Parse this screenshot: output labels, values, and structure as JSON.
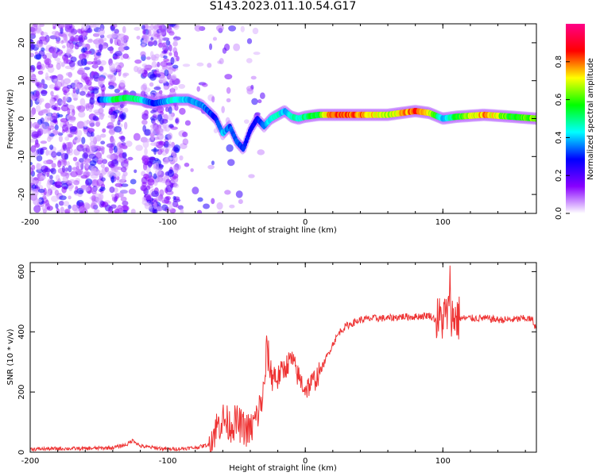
{
  "title": "S143.2023.011.10.54.G17",
  "chart_data": [
    {
      "type": "heatmap",
      "name": "spectrogram",
      "xlabel": "Height of straight line (km)",
      "ylabel": "Frequency (Hz)",
      "xlim": [
        -200,
        168
      ],
      "ylim": [
        -25,
        25
      ],
      "xticks": [
        -200,
        -100,
        0,
        100
      ],
      "yticks": [
        -20,
        -10,
        0,
        10,
        20
      ],
      "colorbar": {
        "label": "Normalized spectral amplitude",
        "range": [
          0,
          1
        ],
        "ticks": [
          "0.0",
          "0.2",
          "0.4",
          "0.6",
          "0.8"
        ],
        "colors": [
          "#ffffff",
          "#8800ff",
          "#0000ff",
          "#00ffff",
          "#00ff00",
          "#ffff00",
          "#ff0000",
          "#ff0088"
        ]
      },
      "ridge": {
        "x": [
          -150,
          -140,
          -130,
          -120,
          -110,
          -95,
          -85,
          -75,
          -65,
          -60,
          -55,
          -50,
          -45,
          -40,
          -35,
          -30,
          -25,
          -20,
          -15,
          -10,
          -5,
          0,
          10,
          20,
          40,
          60,
          80,
          90,
          100,
          110,
          130,
          150,
          168
        ],
        "freq": [
          5,
          5,
          5.5,
          5,
          4,
          5,
          5,
          3.5,
          0,
          -4,
          -2,
          -6,
          -8,
          -3,
          0,
          -2,
          0,
          1,
          2,
          0.5,
          0,
          0.5,
          1,
          1,
          1,
          1,
          2,
          1.5,
          0,
          0.5,
          1,
          0.5,
          0
        ],
        "amp": [
          0.3,
          0.55,
          0.6,
          0.5,
          0.3,
          0.5,
          0.4,
          0.4,
          0.3,
          0.45,
          0.35,
          0.35,
          0.35,
          0.3,
          0.3,
          0.4,
          0.45,
          0.5,
          0.4,
          0.5,
          0.5,
          0.55,
          0.6,
          0.9,
          0.85,
          0.7,
          0.9,
          0.8,
          0.4,
          0.6,
          0.85,
          0.6,
          0.7
        ]
      }
    },
    {
      "type": "line",
      "name": "snr",
      "xlabel": "Height of straight line (km)",
      "ylabel": "SNR (10 * v/v)",
      "xlim": [
        -200,
        168
      ],
      "ylim": [
        0,
        630
      ],
      "xticks": [
        -200,
        -100,
        0,
        100
      ],
      "yticks": [
        0,
        200,
        400,
        600
      ],
      "color": "#ee3333",
      "x": [
        -200,
        -180,
        -160,
        -140,
        -130,
        -125,
        -120,
        -110,
        -100,
        -90,
        -80,
        -70,
        -65,
        -60,
        -55,
        -50,
        -45,
        -40,
        -35,
        -30,
        -28,
        -25,
        -20,
        -15,
        -10,
        -5,
        0,
        5,
        10,
        15,
        20,
        25,
        30,
        40,
        50,
        60,
        70,
        80,
        90,
        95,
        100,
        105,
        110,
        120,
        130,
        140,
        150,
        160,
        165,
        168
      ],
      "y": [
        10,
        12,
        12,
        15,
        25,
        40,
        20,
        15,
        10,
        12,
        15,
        25,
        80,
        110,
        90,
        100,
        80,
        70,
        120,
        200,
        350,
        260,
        250,
        280,
        310,
        250,
        210,
        230,
        260,
        310,
        360,
        400,
        420,
        440,
        445,
        445,
        450,
        450,
        455,
        440,
        445,
        470,
        445,
        445,
        445,
        440,
        440,
        445,
        440,
        410
      ]
    }
  ]
}
